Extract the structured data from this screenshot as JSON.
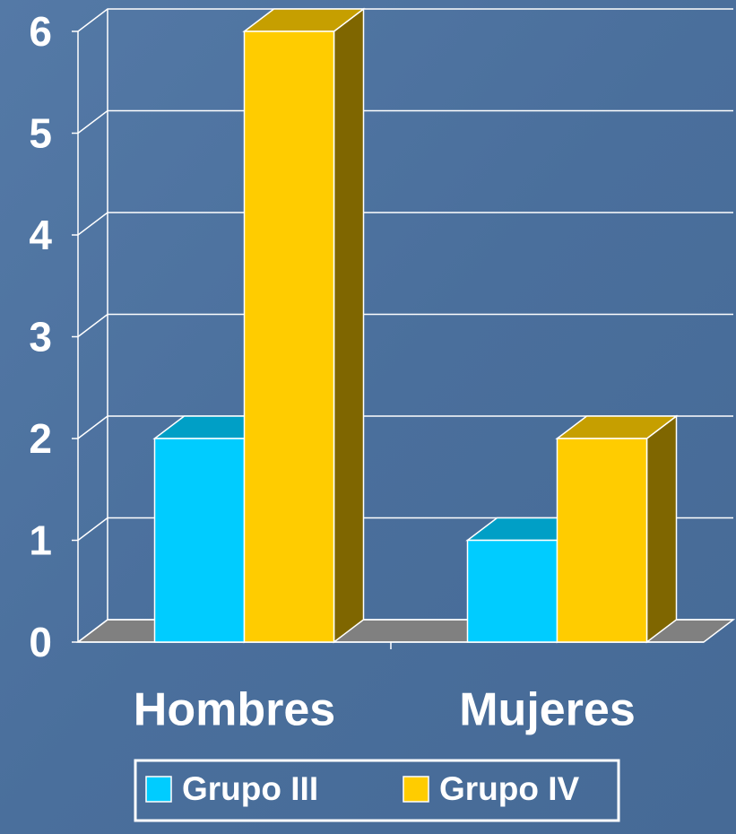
{
  "chart_data": {
    "type": "bar3d",
    "categories": [
      "Hombres",
      "Mujeres"
    ],
    "series": [
      {
        "name": "Grupo III",
        "color": "#00ccff",
        "values": [
          2,
          1
        ]
      },
      {
        "name": "Grupo IV",
        "color": "#ffcc00",
        "values": [
          6,
          2
        ]
      }
    ],
    "ylim": [
      0,
      6
    ],
    "yticks": [
      0,
      1,
      2,
      3,
      4,
      5,
      6
    ],
    "grid": true,
    "legend": "bottom"
  }
}
